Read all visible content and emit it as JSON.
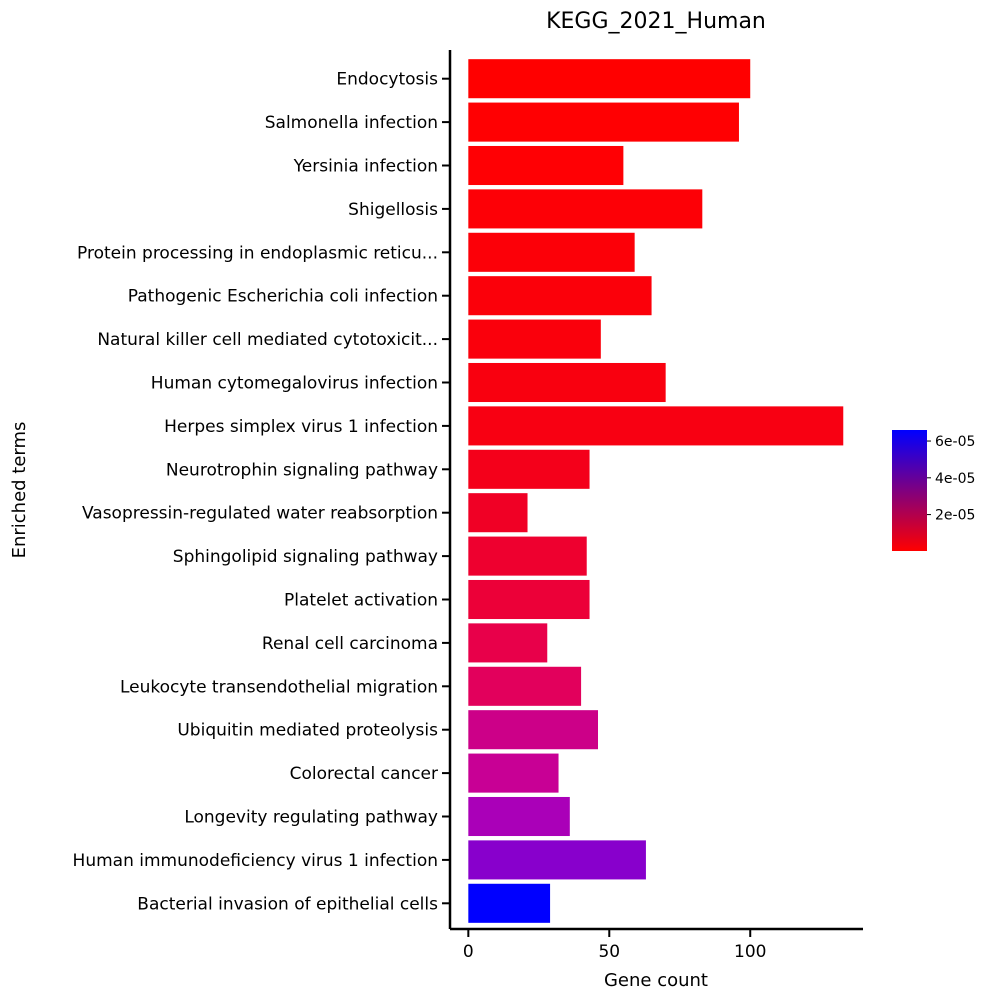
{
  "chart_data": {
    "type": "bar",
    "orientation": "horizontal",
    "title": "KEGG_2021_Human",
    "xlabel": "Gene count",
    "ylabel": "Enriched terms",
    "xlim": [
      -6.5,
      140
    ],
    "xticks": [
      "0",
      "50",
      "100"
    ],
    "xtick_values": [
      0,
      50,
      100
    ],
    "grid": false,
    "categories": [
      "Endocytosis",
      "Salmonella infection",
      "Yersinia infection",
      "Shigellosis",
      "Protein processing in endoplasmic reticu...",
      "Pathogenic Escherichia coli infection",
      "Natural killer cell mediated cytotoxicit...",
      "Human cytomegalovirus infection",
      "Herpes simplex virus 1 infection",
      "Neurotrophin signaling pathway",
      "Vasopressin-regulated water reabsorption",
      "Sphingolipid signaling pathway",
      "Platelet activation",
      "Renal cell carcinoma",
      "Leukocyte transendothelial migration",
      "Ubiquitin mediated proteolysis",
      "Colorectal cancer",
      "Longevity regulating pathway",
      "Human immunodeficiency virus 1 infection",
      "Bacterial invasion of epithelial cells"
    ],
    "values": [
      100,
      96,
      55,
      83,
      59,
      65,
      47,
      70,
      133,
      43,
      21,
      42,
      43,
      28,
      40,
      46,
      32,
      36,
      63,
      29
    ],
    "bar_colors": [
      "#FF0000",
      "#FF0002",
      "#FF0004",
      "#FD0006",
      "#FC0008",
      "#FB000A",
      "#FA000C",
      "#F9000F",
      "#F80012",
      "#F4001A",
      "#F00025",
      "#EE002F",
      "#EC0038",
      "#E8004A",
      "#E2005C",
      "#CC0088",
      "#C80095",
      "#AA00B8",
      "#8800CC",
      "#0000FF"
    ],
    "colorbar": {
      "ticks": [
        "6e-05",
        "4e-05",
        "2e-05"
      ],
      "tick_values": [
        6e-05,
        4e-05,
        2e-05
      ],
      "range": [
        2e-07,
        6.6e-05
      ],
      "color_low": "#FF0000",
      "color_high": "#0000FF",
      "placement": "right"
    }
  }
}
